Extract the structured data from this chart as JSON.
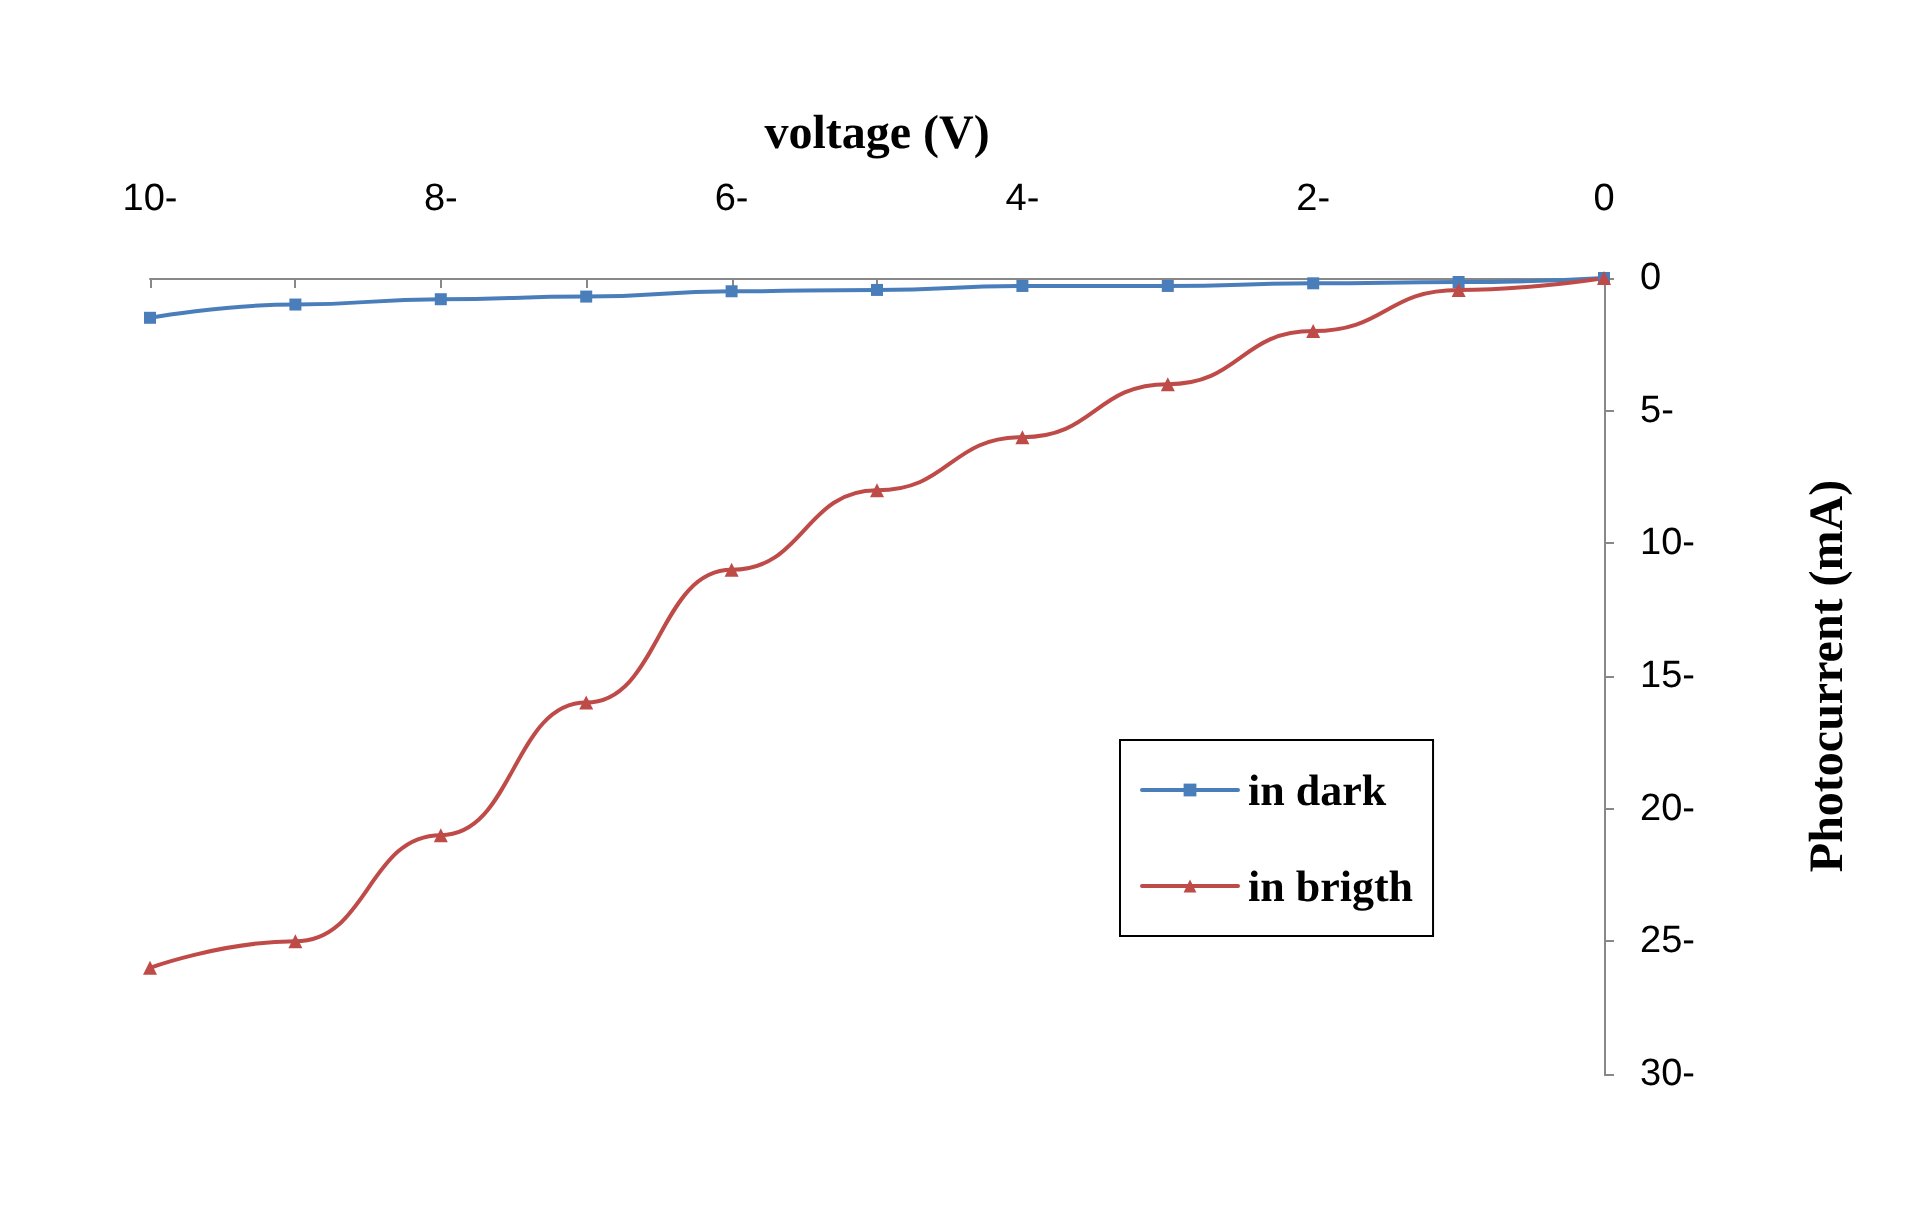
{
  "chart_data": {
    "type": "line",
    "xlabel": "voltage (V)",
    "ylabel": "Photocurrent (mA)",
    "x": [
      -10,
      -9,
      -8,
      -7,
      -6,
      -5,
      -4,
      -3,
      -2,
      -1,
      0
    ],
    "series": [
      {
        "name": "in dark",
        "color": "#4a7ebb",
        "marker": "square",
        "values": [
          -1.5,
          -1.0,
          -0.8,
          -0.7,
          -0.5,
          -0.45,
          -0.3,
          -0.3,
          -0.2,
          -0.15,
          0
        ]
      },
      {
        "name": "in brigth",
        "color": "#be4b48",
        "marker": "triangle",
        "values": [
          -26,
          -25,
          -21,
          -16,
          -11,
          -8,
          -6,
          -4,
          -2,
          -0.45,
          0
        ]
      }
    ],
    "xlim": [
      -10,
      0
    ],
    "xticks": [
      {
        "value": -10,
        "label": "10-"
      },
      {
        "value": -9,
        "label": null
      },
      {
        "value": -8,
        "label": "8-"
      },
      {
        "value": -7,
        "label": null
      },
      {
        "value": -6,
        "label": "6-"
      },
      {
        "value": -5,
        "label": null
      },
      {
        "value": -4,
        "label": "4-"
      },
      {
        "value": -3,
        "label": null
      },
      {
        "value": -2,
        "label": "2-"
      },
      {
        "value": -1,
        "label": null
      },
      0
    ],
    "ylim": [
      -30,
      0
    ],
    "yticks": [
      {
        "value": -30,
        "label": "30-"
      },
      {
        "value": -25,
        "label": "25-"
      },
      {
        "value": -20,
        "label": "20-"
      },
      {
        "value": -15,
        "label": "15-"
      },
      {
        "value": -10,
        "label": "10-"
      },
      {
        "value": -5,
        "label": "5-"
      },
      0
    ],
    "grid": false,
    "legend": "bottom right",
    "line_style": "solid"
  }
}
